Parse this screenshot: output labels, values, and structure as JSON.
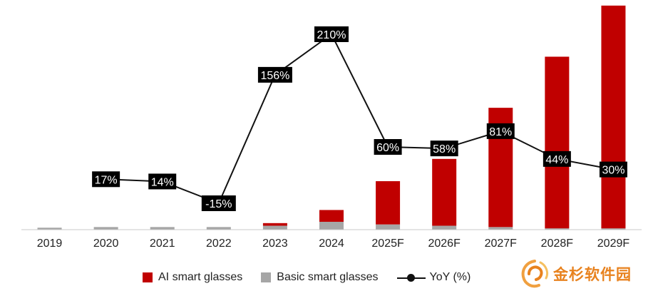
{
  "chart_data": {
    "type": "bar",
    "categories": [
      "2019",
      "2020",
      "2021",
      "2022",
      "2023",
      "2024",
      "2025F",
      "2026F",
      "2027F",
      "2028F",
      "2029F"
    ],
    "series": [
      {
        "name": "AI smart glasses",
        "color": "#c00000",
        "values": [
          0,
          0,
          0,
          0,
          2,
          9,
          33,
          51,
          91,
          131,
          170
        ]
      },
      {
        "name": "Basic smart glasses",
        "color": "#a6a6a6",
        "values": [
          1.5,
          2,
          2,
          2,
          3,
          6,
          4,
          3,
          2,
          1,
          1
        ]
      }
    ],
    "line_series": {
      "name": "YoY (%)",
      "color": "#111111",
      "categories": [
        "2020",
        "2021",
        "2022",
        "2023",
        "2024",
        "2025F",
        "2026F",
        "2027F",
        "2028F",
        "2029F"
      ],
      "values": [
        17,
        14,
        -15,
        156,
        210,
        60,
        58,
        81,
        44,
        30
      ],
      "labels": [
        "17%",
        "14%",
        "-15%",
        "156%",
        "210%",
        "60%",
        "58%",
        "81%",
        "44%",
        "30%"
      ],
      "ylim": [
        -40,
        230
      ]
    },
    "ylim": [
      0,
      172
    ],
    "stacked": true,
    "legend_position": "bottom",
    "grid": false
  },
  "legend": {
    "ai_label": "AI smart glasses",
    "basic_label": "Basic smart glasses",
    "yoy_label": "YoY (%)"
  },
  "watermark": {
    "text": "金杉软件园",
    "icon": "orange-swirl-logo",
    "color": "#e8821e"
  }
}
